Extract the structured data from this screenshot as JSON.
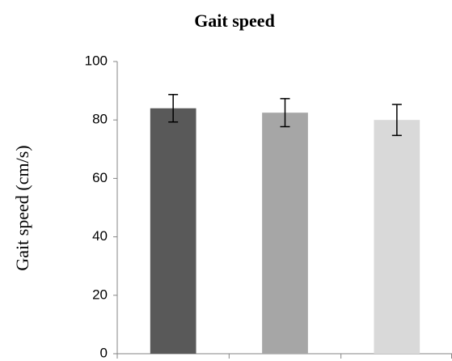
{
  "chart_data": {
    "type": "bar",
    "title": "Gait speed",
    "y_label": "Gait speed (cm/s)",
    "categories": [
      null,
      null,
      null
    ],
    "values": [
      84,
      82.5,
      80
    ],
    "errors": [
      4.7,
      4.8,
      5.3
    ],
    "colors": [
      "#595959",
      "#a6a6a6",
      "#d9d9d9"
    ],
    "ylim": [
      0,
      100
    ],
    "yticks": [
      0,
      20,
      40,
      60,
      80,
      100
    ],
    "grid": false
  }
}
